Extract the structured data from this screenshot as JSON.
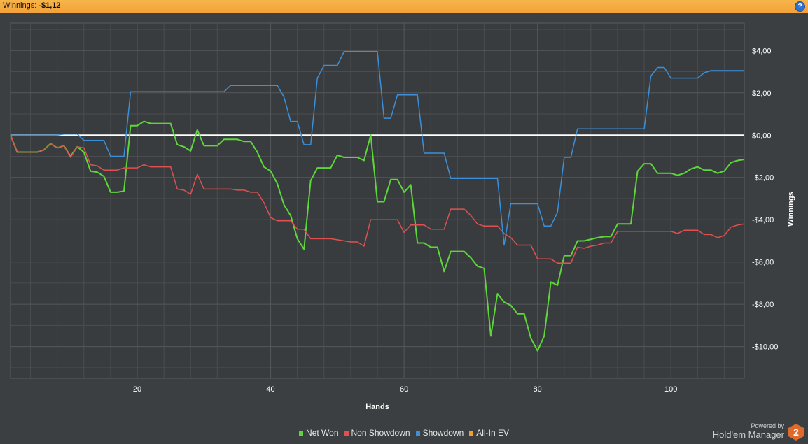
{
  "header": {
    "label": "Winnings:",
    "value": "-$1,12",
    "help_icon": "?"
  },
  "branding": {
    "powered_by": "Powered by",
    "product": "Hold'em Manager",
    "logo_text": "2"
  },
  "colors": {
    "net_won": "#5dd63a",
    "non_showdown": "#e05050",
    "showdown": "#3c8fd8",
    "all_in_ev": "#f0a030",
    "zero_line": "#ffffff",
    "grid": "#55585a",
    "plot_bg": "#393c3e"
  },
  "chart_data": {
    "type": "line",
    "xlabel": "Hands",
    "ylabel": "Winnings",
    "xlim": [
      1,
      111
    ],
    "ylim": [
      -11.5,
      5.3
    ],
    "x_ticks": [
      20,
      40,
      60,
      80,
      100
    ],
    "y_ticks": [
      {
        "value": 4,
        "label": "$4,00"
      },
      {
        "value": 2,
        "label": "$2,00"
      },
      {
        "value": 0,
        "label": "$0,00"
      },
      {
        "value": -2,
        "label": "-$2,00"
      },
      {
        "value": -4,
        "label": "-$4,00"
      },
      {
        "value": -6,
        "label": "-$6,00"
      },
      {
        "value": -8,
        "label": "-$8,00"
      },
      {
        "value": -10,
        "label": "-$10,00"
      }
    ],
    "grid": true,
    "legend_position": "bottom",
    "series": [
      {
        "name": "Net Won",
        "key": "net_won",
        "points": [
          [
            1,
            0
          ],
          [
            2,
            -0.8
          ],
          [
            5,
            -0.8
          ],
          [
            6,
            -0.7
          ],
          [
            7,
            -0.4
          ],
          [
            8,
            -0.6
          ],
          [
            9,
            -0.5
          ],
          [
            10,
            -1.0
          ],
          [
            11,
            -0.55
          ],
          [
            12,
            -0.8
          ],
          [
            13,
            -1.7
          ],
          [
            14,
            -1.75
          ],
          [
            15,
            -1.95
          ],
          [
            16,
            -2.7
          ],
          [
            17,
            -2.7
          ],
          [
            18,
            -2.65
          ],
          [
            19,
            0.45
          ],
          [
            20,
            0.45
          ],
          [
            21,
            0.65
          ],
          [
            22,
            0.55
          ],
          [
            25,
            0.55
          ],
          [
            26,
            -0.45
          ],
          [
            27,
            -0.55
          ],
          [
            28,
            -0.75
          ],
          [
            29,
            0.25
          ],
          [
            30,
            -0.5
          ],
          [
            32,
            -0.5
          ],
          [
            33,
            -0.2
          ],
          [
            35,
            -0.2
          ],
          [
            36,
            -0.3
          ],
          [
            37,
            -0.3
          ],
          [
            38,
            -0.8
          ],
          [
            39,
            -1.5
          ],
          [
            40,
            -1.7
          ],
          [
            41,
            -2.3
          ],
          [
            42,
            -3.3
          ],
          [
            43,
            -3.8
          ],
          [
            44,
            -4.9
          ],
          [
            45,
            -5.4
          ],
          [
            46,
            -2.15
          ],
          [
            47,
            -1.55
          ],
          [
            49,
            -1.55
          ],
          [
            50,
            -0.95
          ],
          [
            51,
            -1.05
          ],
          [
            53,
            -1.05
          ],
          [
            54,
            -1.2
          ],
          [
            55,
            0
          ],
          [
            56,
            -3.15
          ],
          [
            57,
            -3.15
          ],
          [
            58,
            -2.1
          ],
          [
            59,
            -2.1
          ],
          [
            60,
            -2.7
          ],
          [
            61,
            -2.35
          ],
          [
            62,
            -5.1
          ],
          [
            63,
            -5.1
          ],
          [
            64,
            -5.3
          ],
          [
            65,
            -5.3
          ],
          [
            66,
            -6.45
          ],
          [
            67,
            -5.5
          ],
          [
            69,
            -5.5
          ],
          [
            70,
            -5.8
          ],
          [
            71,
            -6.2
          ],
          [
            72,
            -6.3
          ],
          [
            73,
            -9.5
          ],
          [
            74,
            -7.5
          ],
          [
            75,
            -7.9
          ],
          [
            76,
            -8.05
          ],
          [
            77,
            -8.45
          ],
          [
            78,
            -8.45
          ],
          [
            79,
            -9.6
          ],
          [
            80,
            -10.2
          ],
          [
            81,
            -9.5
          ],
          [
            82,
            -6.95
          ],
          [
            83,
            -7.1
          ],
          [
            84,
            -5.7
          ],
          [
            85,
            -5.7
          ],
          [
            86,
            -5.0
          ],
          [
            87,
            -5.0
          ],
          [
            89,
            -4.85
          ],
          [
            90,
            -4.8
          ],
          [
            91,
            -4.8
          ],
          [
            92,
            -4.2
          ],
          [
            94,
            -4.2
          ],
          [
            95,
            -1.7
          ],
          [
            96,
            -1.35
          ],
          [
            97,
            -1.35
          ],
          [
            98,
            -1.8
          ],
          [
            100,
            -1.8
          ],
          [
            101,
            -1.9
          ],
          [
            102,
            -1.8
          ],
          [
            103,
            -1.6
          ],
          [
            104,
            -1.5
          ],
          [
            105,
            -1.65
          ],
          [
            106,
            -1.65
          ],
          [
            107,
            -1.8
          ],
          [
            108,
            -1.7
          ],
          [
            109,
            -1.3
          ],
          [
            110,
            -1.2
          ],
          [
            111,
            -1.15
          ]
        ]
      },
      {
        "name": "Non Showdown",
        "key": "non_showdown",
        "points": [
          [
            1,
            0
          ],
          [
            2,
            -0.8
          ],
          [
            5,
            -0.8
          ],
          [
            6,
            -0.7
          ],
          [
            7,
            -0.4
          ],
          [
            8,
            -0.6
          ],
          [
            9,
            -0.5
          ],
          [
            10,
            -1.05
          ],
          [
            11,
            -0.55
          ],
          [
            12,
            -0.6
          ],
          [
            13,
            -1.4
          ],
          [
            14,
            -1.45
          ],
          [
            15,
            -1.65
          ],
          [
            17,
            -1.65
          ],
          [
            18,
            -1.55
          ],
          [
            20,
            -1.55
          ],
          [
            21,
            -1.4
          ],
          [
            22,
            -1.5
          ],
          [
            25,
            -1.5
          ],
          [
            26,
            -2.55
          ],
          [
            27,
            -2.6
          ],
          [
            28,
            -2.8
          ],
          [
            29,
            -1.85
          ],
          [
            30,
            -2.55
          ],
          [
            34,
            -2.55
          ],
          [
            35,
            -2.6
          ],
          [
            36,
            -2.6
          ],
          [
            37,
            -2.7
          ],
          [
            38,
            -2.7
          ],
          [
            39,
            -3.2
          ],
          [
            40,
            -3.9
          ],
          [
            41,
            -4.05
          ],
          [
            43,
            -4.05
          ],
          [
            44,
            -4.45
          ],
          [
            45,
            -4.45
          ],
          [
            46,
            -4.9
          ],
          [
            49,
            -4.9
          ],
          [
            50,
            -4.95
          ],
          [
            52,
            -5.05
          ],
          [
            53,
            -5.05
          ],
          [
            54,
            -5.25
          ],
          [
            55,
            -4.0
          ],
          [
            59,
            -4.0
          ],
          [
            60,
            -4.6
          ],
          [
            61,
            -4.25
          ],
          [
            63,
            -4.25
          ],
          [
            64,
            -4.45
          ],
          [
            65,
            -4.45
          ],
          [
            66,
            -4.45
          ],
          [
            67,
            -3.5
          ],
          [
            69,
            -3.5
          ],
          [
            70,
            -3.8
          ],
          [
            71,
            -4.2
          ],
          [
            72,
            -4.3
          ],
          [
            74,
            -4.3
          ],
          [
            75,
            -4.65
          ],
          [
            76,
            -4.85
          ],
          [
            77,
            -5.2
          ],
          [
            79,
            -5.2
          ],
          [
            80,
            -5.85
          ],
          [
            82,
            -5.85
          ],
          [
            83,
            -6.05
          ],
          [
            85,
            -6.05
          ],
          [
            86,
            -5.3
          ],
          [
            87,
            -5.35
          ],
          [
            88,
            -5.25
          ],
          [
            89,
            -5.2
          ],
          [
            90,
            -5.1
          ],
          [
            91,
            -5.1
          ],
          [
            92,
            -4.55
          ],
          [
            100,
            -4.55
          ],
          [
            101,
            -4.65
          ],
          [
            102,
            -4.5
          ],
          [
            104,
            -4.5
          ],
          [
            105,
            -4.7
          ],
          [
            106,
            -4.7
          ],
          [
            107,
            -4.85
          ],
          [
            108,
            -4.75
          ],
          [
            109,
            -4.35
          ],
          [
            110,
            -4.25
          ],
          [
            111,
            -4.2
          ]
        ]
      },
      {
        "name": "Showdown",
        "key": "showdown",
        "points": [
          [
            1,
            0
          ],
          [
            8,
            0
          ],
          [
            9,
            0.05
          ],
          [
            11,
            0.05
          ],
          [
            12,
            -0.25
          ],
          [
            15,
            -0.25
          ],
          [
            16,
            -1.0
          ],
          [
            18,
            -1.0
          ],
          [
            19,
            2.05
          ],
          [
            33,
            2.05
          ],
          [
            34,
            2.35
          ],
          [
            41,
            2.35
          ],
          [
            42,
            1.8
          ],
          [
            43,
            0.65
          ],
          [
            44,
            0.65
          ],
          [
            45,
            -0.45
          ],
          [
            46,
            -0.45
          ],
          [
            47,
            2.7
          ],
          [
            48,
            3.3
          ],
          [
            50,
            3.3
          ],
          [
            51,
            3.95
          ],
          [
            56,
            3.95
          ],
          [
            57,
            0.8
          ],
          [
            58,
            0.8
          ],
          [
            59,
            1.9
          ],
          [
            62,
            1.9
          ],
          [
            63,
            -0.85
          ],
          [
            66,
            -0.85
          ],
          [
            67,
            -2.05
          ],
          [
            74,
            -2.05
          ],
          [
            75,
            -5.2
          ],
          [
            76,
            -3.25
          ],
          [
            80,
            -3.25
          ],
          [
            81,
            -4.3
          ],
          [
            82,
            -4.3
          ],
          [
            83,
            -3.65
          ],
          [
            84,
            -1.05
          ],
          [
            85,
            -1.05
          ],
          [
            86,
            0.3
          ],
          [
            96,
            0.3
          ],
          [
            97,
            2.8
          ],
          [
            98,
            3.2
          ],
          [
            99,
            3.2
          ],
          [
            100,
            2.7
          ],
          [
            104,
            2.7
          ],
          [
            105,
            2.95
          ],
          [
            106,
            3.05
          ],
          [
            111,
            3.05
          ]
        ]
      },
      {
        "name": "All-In EV",
        "key": "all_in_ev",
        "points": []
      }
    ]
  }
}
